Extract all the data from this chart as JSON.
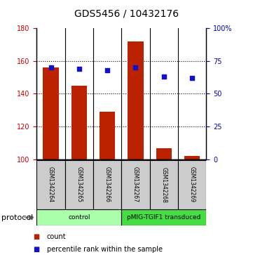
{
  "title": "GDS5456 / 10432176",
  "samples": [
    "GSM1342264",
    "GSM1342265",
    "GSM1342266",
    "GSM1342267",
    "GSM1342268",
    "GSM1342269"
  ],
  "counts": [
    156,
    145,
    129,
    172,
    107,
    102
  ],
  "percentile_ranks": [
    70,
    69,
    68,
    70,
    63,
    62
  ],
  "ylim_left": [
    100,
    180
  ],
  "ylim_right": [
    0,
    100
  ],
  "yticks_left": [
    100,
    120,
    140,
    160,
    180
  ],
  "yticks_right": [
    0,
    25,
    50,
    75,
    100
  ],
  "yticklabels_right": [
    "0",
    "25",
    "50",
    "75",
    "100%"
  ],
  "bar_color": "#BB2200",
  "dot_color": "#1111CC",
  "bar_width": 0.55,
  "groups": [
    {
      "label": "control",
      "start": 0,
      "end": 3,
      "color": "#AAFFAA"
    },
    {
      "label": "pMIG-TGIF1 transduced",
      "start": 3,
      "end": 6,
      "color": "#44DD44"
    }
  ],
  "protocol_label": "protocol",
  "legend_items": [
    {
      "color": "#BB2200",
      "label": "count"
    },
    {
      "color": "#1111CC",
      "label": "percentile rank within the sample"
    }
  ],
  "left_tick_color": "#CC0000",
  "right_tick_color": "#0000BB",
  "bg_color": "#FFFFFF",
  "plot_bg": "#FFFFFF",
  "label_bg": "#CCCCCC"
}
